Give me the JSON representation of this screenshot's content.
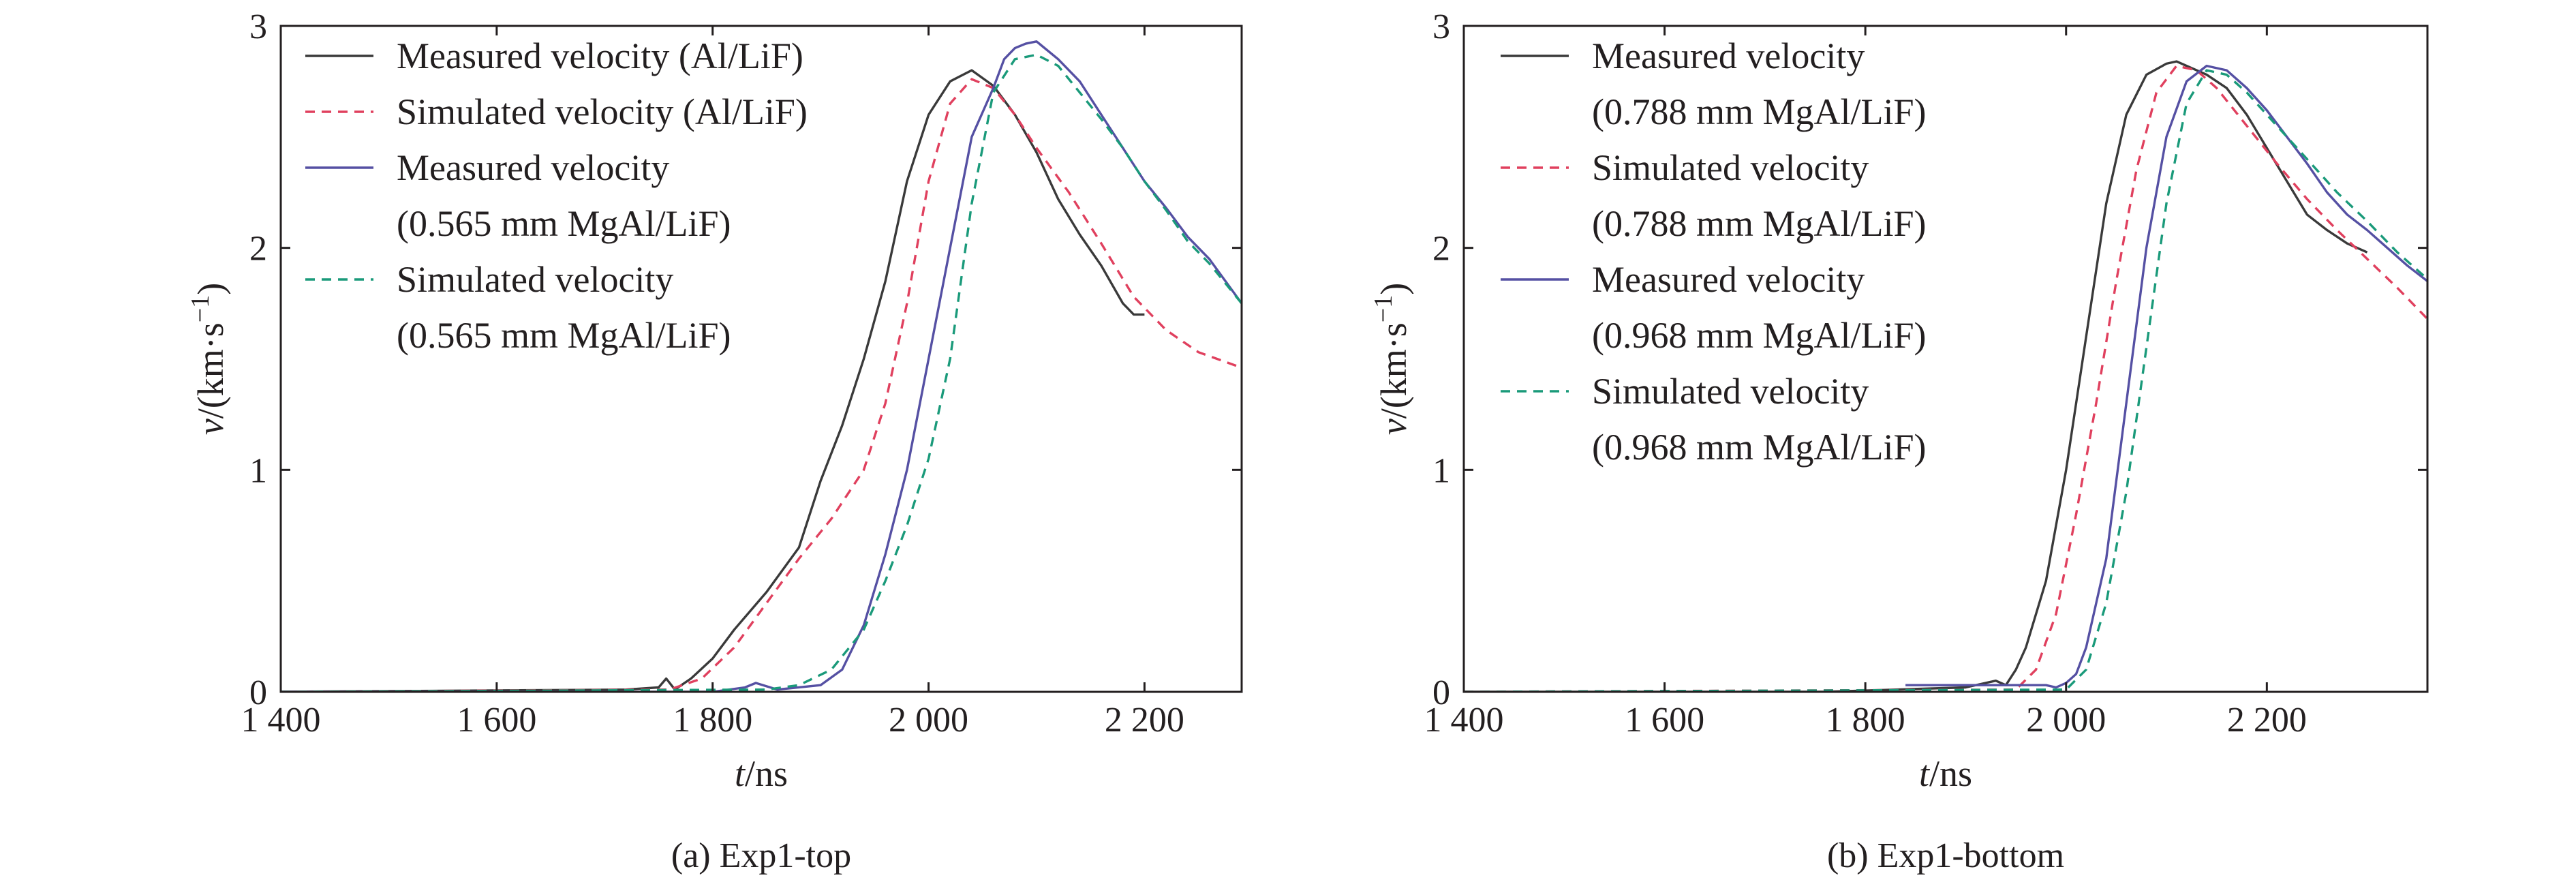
{
  "chart_data": [
    {
      "type": "line",
      "caption": "(a) Exp1-top",
      "xlabel": {
        "var": "t",
        "unit": "/ns"
      },
      "ylabel": {
        "var": "v",
        "unit": "/(km·s",
        "sup": "−1",
        "close": ")"
      },
      "xlim": [
        1400,
        2290
      ],
      "ylim": [
        0,
        3
      ],
      "xticks": [
        1400,
        1600,
        1800,
        2000,
        2200
      ],
      "xtick_labels": [
        "1 400",
        "1 600",
        "1 800",
        "2 000",
        "2 200"
      ],
      "yticks": [
        0,
        1,
        2,
        3
      ],
      "ytick_labels": [
        "0",
        "1",
        "2",
        "3"
      ],
      "legend": {
        "position": "top-left"
      },
      "series": [
        {
          "name": "Measured velocity (Al/LiF)",
          "legend_lines": [
            "Measured velocity (Al/LiF)"
          ],
          "color": "#3a3a3a",
          "dash": false,
          "x": [
            1400,
            1720,
            1750,
            1757,
            1765,
            1780,
            1800,
            1820,
            1850,
            1880,
            1900,
            1920,
            1940,
            1960,
            1980,
            2000,
            2020,
            2040,
            2060,
            2080,
            2100,
            2120,
            2140,
            2160,
            2180,
            2190,
            2200
          ],
          "y": [
            0,
            0.01,
            0.02,
            0.06,
            0.01,
            0.06,
            0.15,
            0.28,
            0.45,
            0.65,
            0.95,
            1.2,
            1.5,
            1.85,
            2.3,
            2.6,
            2.75,
            2.8,
            2.73,
            2.6,
            2.43,
            2.22,
            2.06,
            1.92,
            1.75,
            1.7,
            1.7
          ]
        },
        {
          "name": "Simulated velocity (Al/LiF)",
          "legend_lines": [
            "Simulated velocity (Al/LiF)"
          ],
          "color": "#e0405e",
          "dash": true,
          "x": [
            1400,
            1760,
            1790,
            1820,
            1850,
            1880,
            1910,
            1940,
            1960,
            1980,
            2000,
            2020,
            2040,
            2060,
            2080,
            2100,
            2130,
            2160,
            2190,
            2220,
            2250,
            2290
          ],
          "y": [
            0,
            0.01,
            0.06,
            0.2,
            0.4,
            0.6,
            0.78,
            1.0,
            1.3,
            1.75,
            2.3,
            2.65,
            2.76,
            2.72,
            2.6,
            2.45,
            2.25,
            2.02,
            1.78,
            1.63,
            1.53,
            1.46
          ]
        },
        {
          "name": "Measured velocity (0.565 mm MgAl/LiF)",
          "legend_lines": [
            "Measured velocity",
            "(0.565 mm MgAl/LiF)"
          ],
          "color": "#5550a3",
          "dash": false,
          "x": [
            1400,
            1800,
            1830,
            1840,
            1860,
            1900,
            1920,
            1940,
            1960,
            1980,
            2000,
            2020,
            2040,
            2060,
            2070,
            2080,
            2090,
            2100,
            2120,
            2140,
            2160,
            2180,
            2200,
            2220,
            2240,
            2260,
            2290
          ],
          "y": [
            0,
            0,
            0.02,
            0.04,
            0.01,
            0.03,
            0.1,
            0.3,
            0.62,
            1.0,
            1.5,
            2.0,
            2.5,
            2.72,
            2.85,
            2.9,
            2.92,
            2.93,
            2.85,
            2.75,
            2.6,
            2.45,
            2.3,
            2.18,
            2.05,
            1.95,
            1.75
          ]
        },
        {
          "name": "Simulated velocity (0.565 mm MgAl/LiF)",
          "legend_lines": [
            "Simulated velocity",
            "(0.565 mm MgAl/LiF)"
          ],
          "color": "#1a9a7a",
          "dash": true,
          "x": [
            1400,
            1850,
            1880,
            1910,
            1940,
            1960,
            1980,
            2000,
            2020,
            2040,
            2060,
            2080,
            2100,
            2120,
            2140,
            2160,
            2180,
            2200,
            2220,
            2240,
            2260,
            2290
          ],
          "y": [
            0,
            0.01,
            0.03,
            0.1,
            0.28,
            0.5,
            0.75,
            1.05,
            1.5,
            2.2,
            2.7,
            2.85,
            2.87,
            2.82,
            2.7,
            2.58,
            2.45,
            2.3,
            2.17,
            2.03,
            1.93,
            1.75
          ]
        }
      ]
    },
    {
      "type": "line",
      "caption": "(b) Exp1-bottom",
      "xlabel": {
        "var": "t",
        "unit": "/ns"
      },
      "ylabel": {
        "var": "v",
        "unit": "/(km·s",
        "sup": "−1",
        "close": ")"
      },
      "xlim": [
        1400,
        2360
      ],
      "ylim": [
        0,
        3
      ],
      "xticks": [
        1400,
        1600,
        1800,
        2000,
        2200
      ],
      "xtick_labels": [
        "1 400",
        "1 600",
        "1 800",
        "2 000",
        "2 200"
      ],
      "yticks": [
        0,
        1,
        2,
        3
      ],
      "ytick_labels": [
        "0",
        "1",
        "2",
        "3"
      ],
      "legend": {
        "position": "top-left"
      },
      "series": [
        {
          "name": "Measured velocity (0.788 mm MgAl/LiF)",
          "legend_lines": [
            "Measured velocity",
            "(0.788 mm MgAl/LiF)"
          ],
          "color": "#3a3a3a",
          "dash": false,
          "x": [
            1400,
            1760,
            1900,
            1930,
            1940,
            1950,
            1960,
            1980,
            2000,
            2020,
            2040,
            2060,
            2080,
            2100,
            2110,
            2120,
            2140,
            2160,
            2180,
            2200,
            2220,
            2240,
            2260,
            2280,
            2300
          ],
          "y": [
            0,
            0,
            0.02,
            0.05,
            0.03,
            0.1,
            0.2,
            0.5,
            1.0,
            1.6,
            2.2,
            2.6,
            2.78,
            2.83,
            2.84,
            2.82,
            2.78,
            2.72,
            2.6,
            2.45,
            2.3,
            2.15,
            2.08,
            2.02,
            1.98
          ]
        },
        {
          "name": "Simulated velocity (0.788 mm MgAl/LiF)",
          "legend_lines": [
            "Simulated velocity",
            "(0.788 mm MgAl/LiF)"
          ],
          "color": "#e0405e",
          "dash": true,
          "x": [
            1400,
            1950,
            1970,
            1990,
            2010,
            2030,
            2050,
            2070,
            2090,
            2110,
            2130,
            2150,
            2180,
            2210,
            2240,
            2270,
            2300,
            2330,
            2360
          ],
          "y": [
            0,
            0.01,
            0.1,
            0.35,
            0.8,
            1.3,
            1.85,
            2.35,
            2.7,
            2.82,
            2.8,
            2.72,
            2.55,
            2.38,
            2.22,
            2.08,
            1.95,
            1.82,
            1.68
          ]
        },
        {
          "name": "Measured velocity (0.968 mm MgAl/LiF)",
          "legend_lines": [
            "Measured velocity",
            "(0.968 mm MgAl/LiF)"
          ],
          "color": "#5550a3",
          "dash": false,
          "x": [
            1840,
            1980,
            1990,
            2000,
            2010,
            2020,
            2040,
            2060,
            2080,
            2100,
            2120,
            2140,
            2160,
            2180,
            2200,
            2220,
            2240,
            2260,
            2280,
            2300,
            2320,
            2340,
            2360
          ],
          "y": [
            0.03,
            0.03,
            0.02,
            0.04,
            0.08,
            0.2,
            0.6,
            1.3,
            2.0,
            2.5,
            2.75,
            2.82,
            2.8,
            2.72,
            2.62,
            2.5,
            2.38,
            2.25,
            2.15,
            2.08,
            2.0,
            1.92,
            1.85
          ]
        },
        {
          "name": "Simulated velocity (0.968 mm MgAl/LiF)",
          "legend_lines": [
            "Simulated velocity",
            "(0.968 mm MgAl/LiF)"
          ],
          "color": "#1a9a7a",
          "dash": true,
          "x": [
            1400,
            2000,
            2020,
            2040,
            2060,
            2080,
            2100,
            2120,
            2140,
            2160,
            2180,
            2210,
            2240,
            2270,
            2300,
            2330,
            2360
          ],
          "y": [
            0,
            0.01,
            0.1,
            0.4,
            0.9,
            1.55,
            2.2,
            2.65,
            2.8,
            2.78,
            2.7,
            2.55,
            2.4,
            2.25,
            2.12,
            1.98,
            1.86
          ]
        }
      ]
    }
  ]
}
